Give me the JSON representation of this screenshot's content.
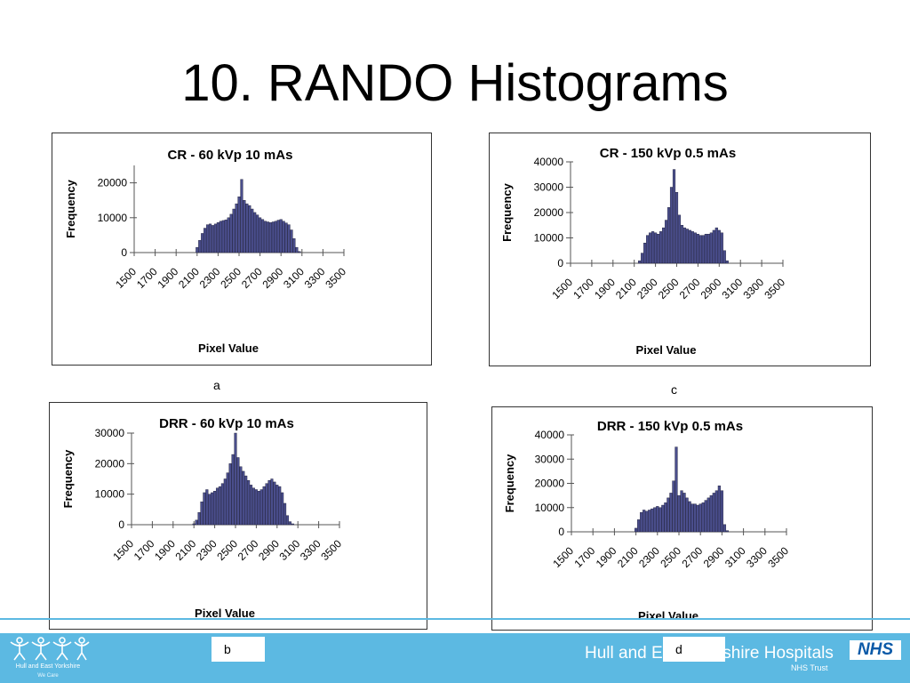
{
  "slide": {
    "title": "10. RANDO Histograms"
  },
  "footer": {
    "org_name": "Hull and East Yorkshire Hospitals",
    "org_sub": "NHS Trust",
    "nhs_badge": "NHS",
    "logo_text": "Hull and East Yorkshire",
    "logo_sub": "We Care"
  },
  "captions": {
    "a": "a",
    "b": "b",
    "c": "c",
    "d": "d"
  },
  "colors": {
    "bar_fill": "#4a4e8c",
    "bar_edge": "#1a1a33",
    "footer": "#5cb9e2"
  },
  "chart_data": [
    {
      "type": "bar",
      "title": "CR - 60 kVp 10 mAs",
      "xlabel": "Pixel Value",
      "ylabel": "Frequency",
      "xlim": [
        1500,
        3500
      ],
      "ylim": [
        0,
        25000
      ],
      "yticks": [
        0,
        10000,
        20000
      ],
      "xticks": [
        1500,
        1700,
        1900,
        2100,
        2300,
        2500,
        2700,
        2900,
        3100,
        3300,
        3500
      ],
      "x": [
        2100,
        2125,
        2150,
        2175,
        2200,
        2225,
        2250,
        2275,
        2300,
        2325,
        2350,
        2375,
        2400,
        2425,
        2450,
        2475,
        2500,
        2525,
        2550,
        2575,
        2600,
        2625,
        2650,
        2675,
        2700,
        2725,
        2750,
        2775,
        2800,
        2825,
        2850,
        2875,
        2900,
        2925,
        2950,
        2975,
        3000,
        3025,
        3050,
        3075
      ],
      "values": [
        1500,
        3500,
        5500,
        7000,
        8000,
        8200,
        7800,
        8200,
        8600,
        9000,
        9200,
        9400,
        10000,
        11000,
        12500,
        14000,
        16000,
        21000,
        15000,
        14000,
        13500,
        12500,
        11500,
        10800,
        10000,
        9500,
        9000,
        8800,
        8600,
        8800,
        9000,
        9300,
        9500,
        9000,
        8500,
        8000,
        6500,
        4000,
        1500,
        300
      ]
    },
    {
      "type": "bar",
      "title": "DRR - 60 kVp 10 mAs",
      "xlabel": "Pixel Value",
      "ylabel": "Frequency",
      "xlim": [
        1500,
        3500
      ],
      "ylim": [
        0,
        30000
      ],
      "yticks": [
        0,
        10000,
        20000,
        30000
      ],
      "xticks": [
        1500,
        1700,
        1900,
        2100,
        2300,
        2500,
        2700,
        2900,
        3100,
        3300,
        3500
      ],
      "x": [
        2100,
        2125,
        2150,
        2175,
        2200,
        2225,
        2250,
        2275,
        2300,
        2325,
        2350,
        2375,
        2400,
        2425,
        2450,
        2475,
        2500,
        2525,
        2550,
        2575,
        2600,
        2625,
        2650,
        2675,
        2700,
        2725,
        2750,
        2775,
        2800,
        2825,
        2850,
        2875,
        2900,
        2925,
        2950,
        2975,
        3000,
        3025,
        3050,
        3075
      ],
      "values": [
        300,
        1500,
        4000,
        7500,
        10500,
        11500,
        10000,
        10500,
        11000,
        12000,
        12500,
        13500,
        15000,
        17000,
        20000,
        23000,
        30000,
        22000,
        19000,
        17500,
        16000,
        14500,
        13000,
        12000,
        11500,
        11000,
        11500,
        12500,
        13500,
        14500,
        15000,
        14000,
        13000,
        12500,
        10500,
        7000,
        3000,
        1000,
        300,
        0
      ]
    },
    {
      "type": "bar",
      "title": "CR - 150 kVp 0.5 mAs",
      "xlabel": "Pixel Value",
      "ylabel": "Frequency",
      "xlim": [
        1500,
        3500
      ],
      "ylim": [
        0,
        40000
      ],
      "yticks": [
        0,
        10000,
        20000,
        30000,
        40000
      ],
      "xticks": [
        1500,
        1700,
        1900,
        2100,
        2300,
        2500,
        2700,
        2900,
        3100,
        3300,
        3500
      ],
      "x": [
        2150,
        2175,
        2200,
        2225,
        2250,
        2275,
        2300,
        2325,
        2350,
        2375,
        2400,
        2425,
        2450,
        2475,
        2500,
        2525,
        2550,
        2575,
        2600,
        2625,
        2650,
        2675,
        2700,
        2725,
        2750,
        2775,
        2800,
        2825,
        2850,
        2875,
        2900,
        2925,
        2950,
        2975
      ],
      "values": [
        1000,
        4000,
        8000,
        11000,
        12000,
        12500,
        12000,
        11500,
        12500,
        14000,
        17000,
        22000,
        30000,
        37000,
        28000,
        19000,
        15000,
        14000,
        13500,
        13000,
        12500,
        12000,
        11500,
        11000,
        11000,
        11500,
        11500,
        12000,
        13000,
        14000,
        13000,
        12000,
        5000,
        1000
      ]
    },
    {
      "type": "bar",
      "title": "DRR - 150 kVp 0.5 mAs",
      "xlabel": "Pixel Value",
      "ylabel": "Frequency",
      "xlim": [
        1500,
        3500
      ],
      "ylim": [
        0,
        40000
      ],
      "yticks": [
        0,
        10000,
        20000,
        30000,
        40000
      ],
      "xticks": [
        1500,
        1700,
        1900,
        2100,
        2300,
        2500,
        2700,
        2900,
        3100,
        3300,
        3500
      ],
      "x": [
        2100,
        2125,
        2150,
        2175,
        2200,
        2225,
        2250,
        2275,
        2300,
        2325,
        2350,
        2375,
        2400,
        2425,
        2450,
        2475,
        2500,
        2525,
        2550,
        2575,
        2600,
        2625,
        2650,
        2675,
        2700,
        2725,
        2750,
        2775,
        2800,
        2825,
        2850,
        2875,
        2900,
        2925,
        2950
      ],
      "values": [
        1500,
        5000,
        8000,
        9000,
        8500,
        9000,
        9500,
        10000,
        10500,
        10000,
        11000,
        12000,
        14000,
        16000,
        21000,
        35000,
        15000,
        17000,
        16000,
        14000,
        12500,
        11500,
        11500,
        11000,
        11500,
        12000,
        13000,
        14000,
        15000,
        16000,
        17000,
        19000,
        17000,
        3000,
        500
      ]
    }
  ]
}
